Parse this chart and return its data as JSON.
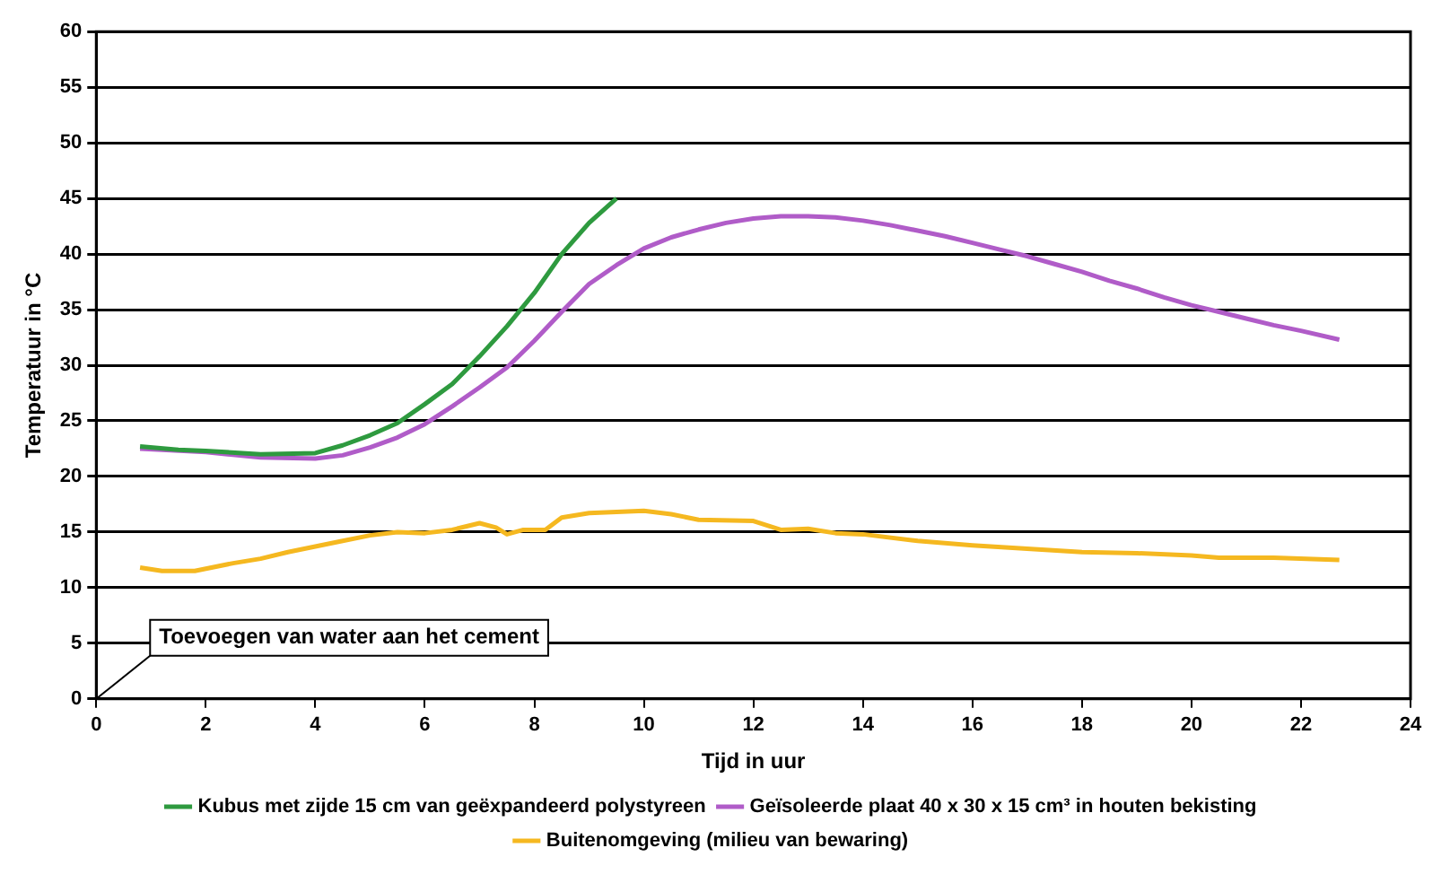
{
  "chart_data": {
    "type": "line",
    "xlabel": "Tijd in uur",
    "ylabel": "Temperatuur in °C",
    "xlim": [
      0,
      24
    ],
    "xticks": [
      0,
      2,
      4,
      6,
      8,
      10,
      12,
      14,
      16,
      18,
      20,
      22,
      24
    ],
    "ylim": [
      0,
      60
    ],
    "yticks": [
      0,
      5,
      10,
      15,
      20,
      25,
      30,
      35,
      40,
      45,
      50,
      55,
      60
    ],
    "grid": "y",
    "legend": "bottom",
    "marker": "none",
    "line_style": "solid",
    "annotations": [
      "Toevoegen van water aan het cement"
    ],
    "series": [
      {
        "name": "Kubus met zijde 15 cm van geëxpandeerd polystyreen",
        "color": "#2e9a3f",
        "x": [
          0.8,
          1.5,
          2,
          3,
          4,
          4.5,
          5,
          5.5,
          6,
          6.5,
          7,
          7.5,
          8,
          8.5,
          9,
          9.5
        ],
        "values": [
          22.7,
          22.4,
          22.3,
          22.0,
          22.1,
          22.8,
          23.7,
          24.8,
          26.5,
          28.3,
          30.8,
          33.5,
          36.5,
          40,
          42.8,
          45
        ]
      },
      {
        "name": "Geïsoleerde plaat 40 x 30 x 15 cm³ in houten bekisting",
        "color": "#b05cc8",
        "x": [
          0.8,
          2,
          3,
          4,
          4.5,
          5,
          5.5,
          6,
          6.5,
          7,
          7.5,
          8,
          8.5,
          9,
          9.5,
          10,
          10.5,
          11,
          11.5,
          12,
          12.5,
          13,
          13.5,
          14,
          14.5,
          15,
          15.5,
          16,
          16.5,
          17,
          17.5,
          18,
          18.5,
          19,
          19.5,
          20,
          20.5,
          21,
          21.5,
          22,
          22.7
        ],
        "values": [
          22.5,
          22.2,
          21.7,
          21.6,
          21.9,
          22.6,
          23.5,
          24.7,
          26.3,
          28.0,
          29.8,
          32.2,
          34.8,
          37.3,
          39.0,
          40.5,
          41.5,
          42.2,
          42.8,
          43.2,
          43.4,
          43.4,
          43.3,
          43.0,
          42.6,
          42.1,
          41.6,
          41.0,
          40.4,
          39.8,
          39.1,
          38.4,
          37.6,
          36.9,
          36.1,
          35.4,
          34.8,
          34.2,
          33.6,
          33.1,
          32.3
        ]
      },
      {
        "name": "Buitenomgeving (milieu van bewaring)",
        "color": "#f5b820",
        "x": [
          0.8,
          1.2,
          1.8,
          2.5,
          3,
          3.5,
          4,
          4.5,
          5,
          5.5,
          6,
          6.5,
          7,
          7.3,
          7.5,
          7.8,
          8.2,
          8.5,
          9,
          10,
          10.5,
          11,
          12,
          12.5,
          13,
          13.5,
          14,
          15,
          16,
          17,
          18,
          19,
          20,
          20.5,
          21.5,
          22.7
        ],
        "values": [
          11.8,
          11.5,
          11.5,
          12.2,
          12.6,
          13.2,
          13.7,
          14.2,
          14.7,
          15,
          14.9,
          15.2,
          15.8,
          15.4,
          14.8,
          15.2,
          15.2,
          16.3,
          16.7,
          16.9,
          16.6,
          16.1,
          16.0,
          15.2,
          15.3,
          14.9,
          14.8,
          14.2,
          13.8,
          13.5,
          13.2,
          13.1,
          12.9,
          12.7,
          12.7,
          12.5
        ]
      }
    ]
  }
}
